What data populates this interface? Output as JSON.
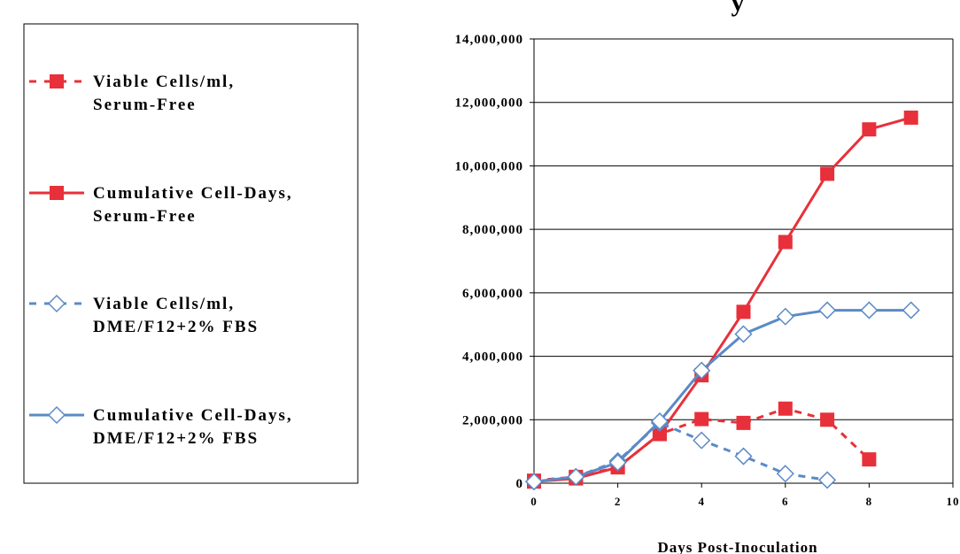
{
  "chart_data": {
    "type": "line",
    "title": "y",
    "x_label": "Days Post-Inoculation",
    "xlim": [
      0,
      10
    ],
    "xticks": [
      0,
      2,
      4,
      6,
      8,
      10
    ],
    "ylim": [
      0,
      14000000
    ],
    "yticks": [
      0,
      {
        "value": 2000000,
        "label": "2,000,000"
      },
      {
        "value": 4000000,
        "label": "4,000,000"
      },
      {
        "value": 6000000,
        "label": "6,000,000"
      },
      {
        "value": 8000000,
        "label": "8,000,000"
      },
      {
        "value": 10000000,
        "label": "10,000,000"
      },
      {
        "value": 12000000,
        "label": "12,000,000"
      },
      {
        "value": 14000000,
        "label": "14,000,000"
      }
    ],
    "grid": true,
    "legend": "left",
    "series": [
      {
        "name": "Viable Cells/ml, Serum-Free",
        "color": "#e8303a",
        "marker": "square",
        "dashed": true,
        "x": [
          0,
          1,
          2,
          3,
          4,
          5,
          6,
          7,
          8
        ],
        "values": [
          80000,
          200000,
          500000,
          1550000,
          2020000,
          1900000,
          2350000,
          2000000,
          750000
        ]
      },
      {
        "name": "Cumulative Cell-Days, Serum-Free",
        "color": "#e8303a",
        "marker": "square",
        "dashed": false,
        "x": [
          0,
          1,
          2,
          3,
          4,
          5,
          6,
          7,
          8,
          9
        ],
        "values": [
          50000,
          150000,
          500000,
          1550000,
          3400000,
          5400000,
          7600000,
          9750000,
          11150000,
          11520000
        ]
      },
      {
        "name": "Viable Cells/ml, DME/F12+2% FBS",
        "color": "#5b8ac6",
        "marker": "diamond",
        "dashed": true,
        "x": [
          0,
          1,
          2,
          3,
          4,
          5,
          6,
          7
        ],
        "values": [
          50000,
          200000,
          700000,
          1900000,
          1350000,
          850000,
          300000,
          100000
        ]
      },
      {
        "name": "Cumulative Cell-Days, DME/F12+2% FBS",
        "color": "#5b8ac6",
        "marker": "diamond",
        "dashed": false,
        "x": [
          0,
          1,
          2,
          3,
          4,
          5,
          6,
          7,
          8,
          9
        ],
        "values": [
          50000,
          200000,
          650000,
          1950000,
          3550000,
          4700000,
          5250000,
          5450000,
          5450000,
          5450000
        ]
      }
    ]
  }
}
